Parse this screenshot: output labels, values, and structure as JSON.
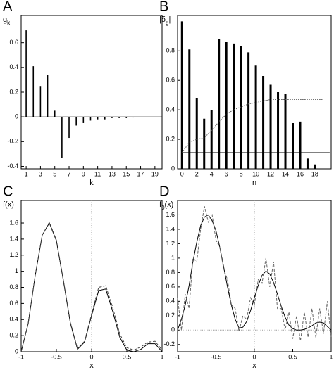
{
  "chart_data": [
    {
      "type": "stem",
      "panel_label": "A",
      "y_label_parts": [
        "g",
        "k"
      ],
      "x_label": "k",
      "x": [
        1,
        2,
        3,
        4,
        5,
        6,
        7,
        8,
        9,
        10,
        11,
        12,
        13,
        14,
        15,
        16,
        17,
        18,
        19
      ],
      "values": [
        0.7,
        0.41,
        0.25,
        0.34,
        0.05,
        -0.33,
        -0.17,
        -0.07,
        -0.05,
        -0.03,
        -0.02,
        -0.02,
        -0.01,
        -0.01,
        -0.01,
        -0.005,
        0,
        0,
        0
      ],
      "color": "#000000",
      "xlim": [
        0.3,
        20
      ],
      "ylim": [
        -0.42,
        0.82
      ],
      "xticks": [
        1,
        3,
        5,
        7,
        9,
        11,
        13,
        15,
        17,
        19
      ],
      "yticks": [
        -0.4,
        -0.2,
        0,
        0.2,
        0.4,
        0.6
      ]
    },
    {
      "type": "stem",
      "panel_label": "B",
      "y_label_parts": [
        "|δ",
        "g",
        "|"
      ],
      "x_label": "n",
      "x": [
        0,
        1,
        2,
        3,
        4,
        5,
        6,
        7,
        8,
        9,
        10,
        11,
        12,
        13,
        14,
        15,
        16,
        17,
        18,
        19
      ],
      "values": [
        1.0,
        0.81,
        0.48,
        0.34,
        0.4,
        0.88,
        0.86,
        0.85,
        0.83,
        0.79,
        0.7,
        0.63,
        0.57,
        0.52,
        0.51,
        0.31,
        0.32,
        0.07,
        0.03,
        0
      ],
      "color": "#000000",
      "xlim": [
        -0.6,
        20.2
      ],
      "ylim": [
        0,
        1.04
      ],
      "xticks": [
        0,
        2,
        4,
        6,
        8,
        10,
        12,
        14,
        16,
        18
      ],
      "yticks": [
        0,
        0.2,
        0.4,
        0.6,
        0.8
      ],
      "lines": [
        {
          "x": [
            0,
            1,
            2,
            3,
            4,
            5,
            6,
            7,
            8,
            9,
            10,
            11,
            12,
            13,
            14,
            15,
            16,
            17,
            18,
            19
          ],
          "values": [
            0.11,
            0.18,
            0.2,
            0.21,
            0.26,
            0.32,
            0.37,
            0.4,
            0.42,
            0.44,
            0.45,
            0.46,
            0.47,
            0.47,
            0.47,
            0.47,
            0.47,
            0.47,
            0.47,
            0.47
          ],
          "color": "#555555",
          "style": "dotted"
        },
        {
          "x": [
            0,
            20
          ],
          "values": [
            0.11,
            0.11
          ],
          "color": "#000000",
          "style": "solid"
        }
      ]
    },
    {
      "type": "line",
      "panel_label": "C",
      "y_label_parts": [
        "f(x)"
      ],
      "x_label": "x",
      "x": [
        -1,
        -0.9,
        -0.8,
        -0.7,
        -0.6,
        -0.5,
        -0.4,
        -0.3,
        -0.2,
        -0.1,
        0,
        0.1,
        0.2,
        0.3,
        0.4,
        0.5,
        0.6,
        0.7,
        0.8,
        0.9,
        1
      ],
      "series": [
        {
          "color": "#000000",
          "style": "solid",
          "values": [
            0,
            0.35,
            0.95,
            1.45,
            1.6,
            1.38,
            0.88,
            0.35,
            0.03,
            0.12,
            0.45,
            0.76,
            0.78,
            0.5,
            0.18,
            0.02,
            0,
            0.03,
            0.1,
            0.1,
            0
          ]
        },
        {
          "color": "#444444",
          "style": "dashed",
          "values": [
            0,
            0.35,
            0.95,
            1.45,
            1.61,
            1.39,
            0.89,
            0.36,
            0.04,
            0.13,
            0.47,
            0.8,
            0.82,
            0.55,
            0.22,
            0.05,
            0.02,
            0.06,
            0.12,
            0.13,
            0.02
          ]
        }
      ],
      "ref_x": 0,
      "xlim": [
        -1,
        1
      ],
      "ylim": [
        0,
        1.88
      ],
      "xticks": [
        -1,
        -0.5,
        0,
        0.5,
        1
      ],
      "yticks": [
        0,
        0.2,
        0.4,
        0.6,
        0.8,
        1,
        1.2,
        1.4,
        1.6
      ]
    },
    {
      "type": "line",
      "panel_label": "D",
      "y_label_parts": [
        "f",
        "0",
        "(x)"
      ],
      "x_label": "x",
      "x": [
        -1,
        -0.95,
        -0.9,
        -0.85,
        -0.8,
        -0.75,
        -0.7,
        -0.65,
        -0.6,
        -0.55,
        -0.5,
        -0.45,
        -0.4,
        -0.35,
        -0.3,
        -0.25,
        -0.2,
        -0.15,
        -0.1,
        -0.05,
        0,
        0.05,
        0.1,
        0.15,
        0.2,
        0.25,
        0.3,
        0.35,
        0.4,
        0.45,
        0.5,
        0.55,
        0.6,
        0.65,
        0.7,
        0.75,
        0.8,
        0.85,
        0.9,
        0.95,
        1
      ],
      "series": [
        {
          "color": "#000000",
          "style": "solid",
          "values": [
            0,
            0.15,
            0.35,
            0.62,
            0.95,
            1.22,
            1.45,
            1.57,
            1.6,
            1.52,
            1.38,
            1.15,
            0.88,
            0.6,
            0.35,
            0.15,
            0.03,
            0.04,
            0.12,
            0.27,
            0.45,
            0.62,
            0.76,
            0.82,
            0.78,
            0.66,
            0.5,
            0.33,
            0.18,
            0.07,
            0.02,
            0,
            0,
            0.01,
            0.03,
            0.06,
            0.1,
            0.11,
            0.1,
            0.05,
            0
          ]
        },
        {
          "color": "#666666",
          "style": "dashed",
          "values": [
            0.45,
            0,
            0.5,
            0.3,
            1.0,
            0.95,
            1.4,
            1.72,
            1.5,
            1.6,
            1.25,
            1.15,
            0.85,
            0.7,
            0.35,
            0.3,
            -0.02,
            0.2,
            0.15,
            0.45,
            0.35,
            0.7,
            0.65,
            1.0,
            0.6,
            0.95,
            0.3,
            0.3,
            0,
            0.25,
            -0.12,
            0.2,
            -0.15,
            0.25,
            -0.1,
            0.3,
            -0.1,
            0.3,
            -0.05,
            0.4,
            -0.1
          ]
        }
      ],
      "ref_x": 0,
      "ref_y": 0,
      "xlim": [
        -1,
        1
      ],
      "ylim": [
        -0.3,
        1.8
      ],
      "xticks": [
        -1,
        -0.5,
        0,
        0.5,
        1
      ],
      "yticks": [
        -0.2,
        0,
        0.2,
        0.4,
        0.6,
        0.8,
        1,
        1.2,
        1.4,
        1.6
      ]
    }
  ]
}
